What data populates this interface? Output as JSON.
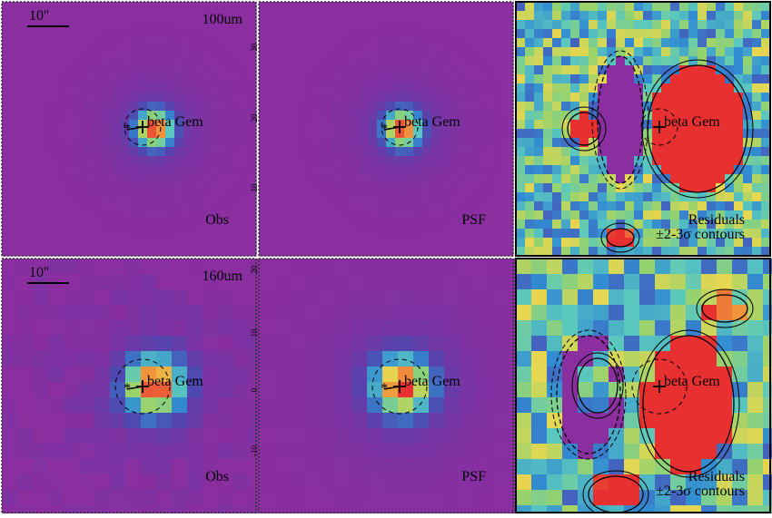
{
  "panels": [
    {
      "band": "100um",
      "scale": "10''",
      "source": "beta Gem",
      "label": "Obs"
    },
    {
      "source": "beta Gem",
      "label": "PSF",
      "ticks": [
        "30",
        "20",
        "10"
      ]
    },
    {
      "source": "beta Gem",
      "label": "Residuals",
      "sublabel": "±2-3σ contours"
    },
    {
      "band": "160um",
      "scale": "10''",
      "source": "beta Gem",
      "label": "Obs"
    },
    {
      "source": "beta Gem",
      "label": "PSF",
      "ticks": [
        "20",
        "10",
        "0",
        "-10"
      ]
    },
    {
      "source": "beta Gem",
      "label": "Residuals",
      "sublabel": "±2-3σ contours"
    }
  ]
}
